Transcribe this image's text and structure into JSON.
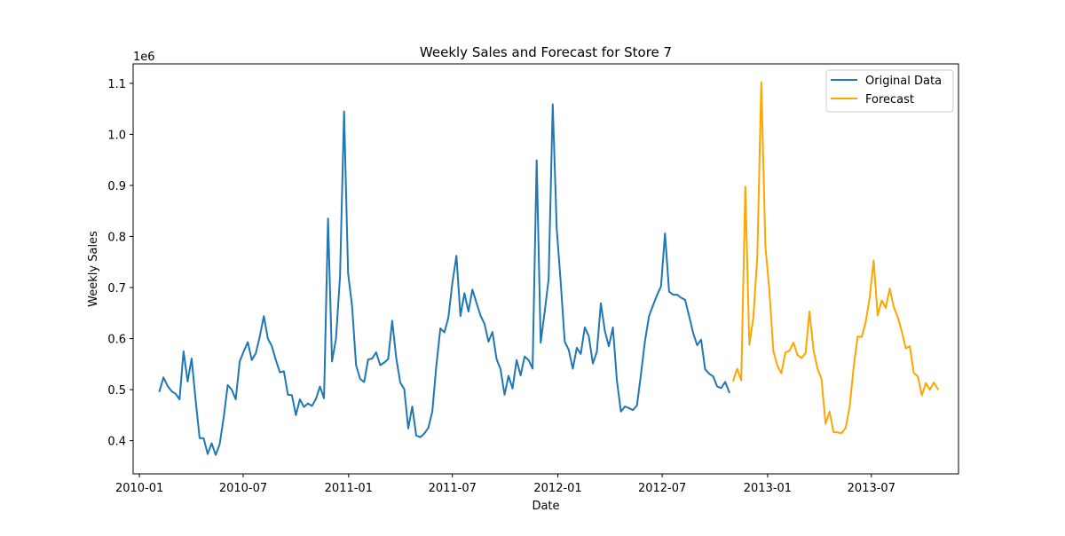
{
  "chart_data": {
    "type": "line",
    "title": "Weekly Sales and Forecast for Store 7",
    "xlabel": "Date",
    "ylabel": "Weekly Sales",
    "y_offset_label": "1e6",
    "x_range": [
      "2009-12-21",
      "2013-11-30"
    ],
    "ylim": [
      0.335,
      1.138
    ],
    "x_ticks": [
      "2010-01-01",
      "2010-07-01",
      "2011-01-01",
      "2011-07-01",
      "2012-01-01",
      "2012-07-01",
      "2013-01-01",
      "2013-07-01"
    ],
    "x_tick_labels": [
      "2010-01",
      "2010-07",
      "2011-01",
      "2011-07",
      "2012-01",
      "2012-07",
      "2013-01",
      "2013-07"
    ],
    "y_ticks": [
      0.4,
      0.5,
      0.6,
      0.7,
      0.8,
      0.9,
      1.0,
      1.1
    ],
    "y_tick_labels": [
      "0.4",
      "0.5",
      "0.6",
      "0.7",
      "0.8",
      "0.9",
      "1.0",
      "1.1"
    ],
    "grid": false,
    "legend_position": "top-right",
    "series": [
      {
        "name": "Original Data",
        "color": "#1f77b4",
        "start_date": "2010-02-05",
        "interval_days": 7,
        "values": [
          0.497,
          0.524,
          0.507,
          0.497,
          0.492,
          0.481,
          0.575,
          0.516,
          0.561,
          0.48,
          0.405,
          0.405,
          0.374,
          0.395,
          0.372,
          0.393,
          0.445,
          0.509,
          0.5,
          0.481,
          0.555,
          0.575,
          0.593,
          0.558,
          0.571,
          0.604,
          0.644,
          0.6,
          0.585,
          0.558,
          0.534,
          0.536,
          0.49,
          0.489,
          0.45,
          0.481,
          0.466,
          0.473,
          0.468,
          0.482,
          0.506,
          0.483,
          0.835,
          0.555,
          0.6,
          0.721,
          1.045,
          0.728,
          0.664,
          0.548,
          0.521,
          0.515,
          0.559,
          0.561,
          0.573,
          0.548,
          0.553,
          0.56,
          0.635,
          0.563,
          0.514,
          0.501,
          0.424,
          0.467,
          0.41,
          0.407,
          0.414,
          0.425,
          0.457,
          0.546,
          0.62,
          0.612,
          0.641,
          0.709,
          0.762,
          0.644,
          0.689,
          0.653,
          0.696,
          0.67,
          0.645,
          0.629,
          0.594,
          0.613,
          0.56,
          0.54,
          0.49,
          0.527,
          0.502,
          0.558,
          0.528,
          0.565,
          0.558,
          0.541,
          0.949,
          0.592,
          0.652,
          0.717,
          1.059,
          0.815,
          0.71,
          0.594,
          0.578,
          0.541,
          0.582,
          0.57,
          0.622,
          0.605,
          0.551,
          0.574,
          0.669,
          0.615,
          0.585,
          0.622,
          0.518,
          0.457,
          0.467,
          0.464,
          0.46,
          0.469,
          0.53,
          0.595,
          0.644,
          0.665,
          0.685,
          0.702,
          0.806,
          0.692,
          0.686,
          0.686,
          0.68,
          0.676,
          0.644,
          0.611,
          0.587,
          0.598,
          0.54,
          0.531,
          0.526,
          0.506,
          0.503,
          0.515,
          0.495
        ]
      },
      {
        "name": "Forecast",
        "color": "#ffa500",
        "start_date": "2012-11-02",
        "interval_days": 7,
        "values": [
          0.518,
          0.541,
          0.518,
          0.898,
          0.588,
          0.64,
          0.76,
          1.102,
          0.781,
          0.694,
          0.575,
          0.547,
          0.532,
          0.573,
          0.576,
          0.592,
          0.568,
          0.562,
          0.571,
          0.653,
          0.578,
          0.541,
          0.521,
          0.433,
          0.457,
          0.417,
          0.416,
          0.415,
          0.425,
          0.466,
          0.543,
          0.604,
          0.603,
          0.632,
          0.68,
          0.753,
          0.645,
          0.675,
          0.66,
          0.698,
          0.662,
          0.642,
          0.614,
          0.581,
          0.585,
          0.533,
          0.526,
          0.489,
          0.513,
          0.5,
          0.514,
          0.501
        ]
      }
    ]
  }
}
